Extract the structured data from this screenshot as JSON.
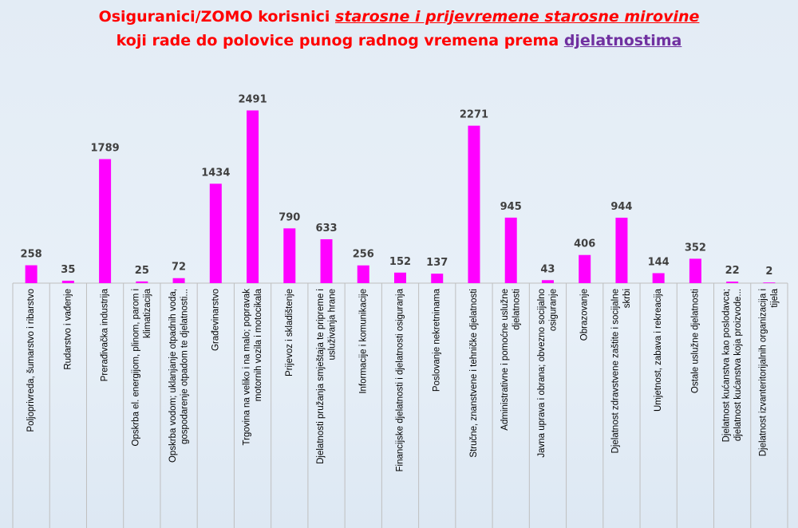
{
  "title": {
    "line1_part1": "Osiguranici/ZOMO korisnici",
    "line1_part2": "starosne i prijevremene starosne mirovine",
    "line2_part1": "koji rade do polovice punog radnog vremena prema",
    "line2_part2": "djelatnostima"
  },
  "colors": {
    "bar": "#ff00ff",
    "title_red": "#ff0000",
    "title_purple": "#7030a0",
    "gridline": "#bfbfbf",
    "label": "#404040"
  },
  "chart_data": {
    "type": "bar",
    "title": "Osiguranici/ZOMO korisnici starosne i prijevremene starosne mirovine koji rade do polovice punog radnog vremena prema djelatnostima",
    "xlabel": "",
    "ylabel": "",
    "ylim": [
      0,
      2600
    ],
    "grid": false,
    "legend": "none",
    "categories": [
      [
        "Poljoprivreda, šumarstvo i ribarstvo"
      ],
      [
        "Rudarstvo i vađenje"
      ],
      [
        "Prerađivačka industrija"
      ],
      [
        "Opskrba el. energijom, plinom, parom i",
        "klimatizacija"
      ],
      [
        "Opskrba vodom; uklanjanje otpadnih voda,",
        "gospodarenje otpadom te djelatnosti..."
      ],
      [
        "Građevinarstvo"
      ],
      [
        "Trgovina na veliko i na malo; popravak",
        "motornih vozila i motocikala"
      ],
      [
        "Prijevoz i skladištenje"
      ],
      [
        "Djelatnosti pružanja smještaja te pripreme i",
        "usluživanja hrane"
      ],
      [
        "Informacije i komunikacije"
      ],
      [
        "Financijske djelatnosti i djelatnosti osiguranja"
      ],
      [
        "Poslovanje nekretninama"
      ],
      [
        "Stručne, znanstvene i tehničke djelatnosti"
      ],
      [
        "Administrativne i pomoćne uslužne",
        "djelatnosti"
      ],
      [
        "Javna uprava i obrana; obvezno socijalno",
        "osiguranje"
      ],
      [
        "Obrazovanje"
      ],
      [
        "Djelatnost zdravstvene zaštite i socijalne",
        "skrbi"
      ],
      [
        "Umjetnost, zabava i rekreacija"
      ],
      [
        "Ostale uslužne djelatnosti"
      ],
      [
        "Djelatnost kućanstva kao poslodavca;",
        "djelatnost kućanstva koja proizvode..."
      ],
      [
        "Djelatnost izvanteritorijalnih organizacija i",
        "tijela"
      ]
    ],
    "values": [
      258,
      35,
      1789,
      25,
      72,
      1434,
      2491,
      790,
      633,
      256,
      152,
      137,
      2271,
      945,
      43,
      406,
      944,
      144,
      352,
      22,
      2
    ]
  }
}
